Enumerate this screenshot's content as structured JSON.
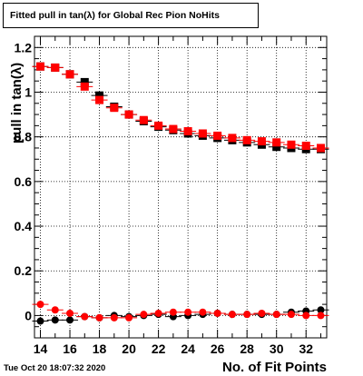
{
  "title": "Fitted pull in tan(λ) for Global Rec Pion NoHits",
  "footer_date": "Tue Oct 20 18:07:32 2020",
  "chart_data": {
    "type": "scatter",
    "xlabel": "No. of Fit Points",
    "ylabel": "pull in tan(λ)",
    "xlim": [
      13.6,
      33.4
    ],
    "ylim": [
      -0.1,
      1.25
    ],
    "x_ticks": [
      14,
      16,
      18,
      20,
      22,
      24,
      26,
      28,
      30,
      32
    ],
    "y_ticks": [
      0,
      0.2,
      0.4,
      0.6,
      0.8,
      1,
      1.2
    ],
    "y_tick_labels": [
      "0",
      "0.2",
      "0.4",
      "0.6",
      "0.8",
      "1",
      "1.2"
    ],
    "grid": true,
    "x": [
      14,
      15,
      16,
      17,
      18,
      19,
      20,
      21,
      22,
      23,
      24,
      25,
      26,
      27,
      28,
      29,
      30,
      31,
      32,
      33
    ],
    "series": [
      {
        "marker": "square",
        "color": "#000000",
        "values": [
          1.115,
          1.11,
          1.08,
          1.045,
          0.985,
          0.935,
          0.9,
          0.87,
          0.845,
          0.83,
          0.815,
          0.805,
          0.795,
          0.785,
          0.775,
          0.765,
          0.755,
          0.75,
          0.745,
          0.745
        ]
      },
      {
        "marker": "square",
        "color": "#ff0000",
        "values": [
          1.115,
          1.11,
          1.08,
          1.025,
          0.965,
          0.93,
          0.9,
          0.875,
          0.85,
          0.835,
          0.825,
          0.815,
          0.805,
          0.795,
          0.785,
          0.78,
          0.775,
          0.765,
          0.76,
          0.75
        ]
      },
      {
        "marker": "circle",
        "color": "#000000",
        "values": [
          -0.025,
          -0.02,
          -0.02,
          -0.005,
          -0.01,
          0.0,
          -0.005,
          0.0,
          0.005,
          -0.005,
          0.0,
          0.005,
          0.01,
          0.005,
          0.005,
          0.005,
          0.005,
          0.015,
          0.02,
          0.025
        ]
      },
      {
        "marker": "circle",
        "color": "#ff0000",
        "values": [
          0.05,
          0.025,
          0.01,
          -0.005,
          -0.01,
          -0.01,
          -0.01,
          0.005,
          0.01,
          0.015,
          0.015,
          0.015,
          0.01,
          0.005,
          0.005,
          0.01,
          0.005,
          0.005,
          0.0,
          0.0
        ]
      }
    ]
  }
}
